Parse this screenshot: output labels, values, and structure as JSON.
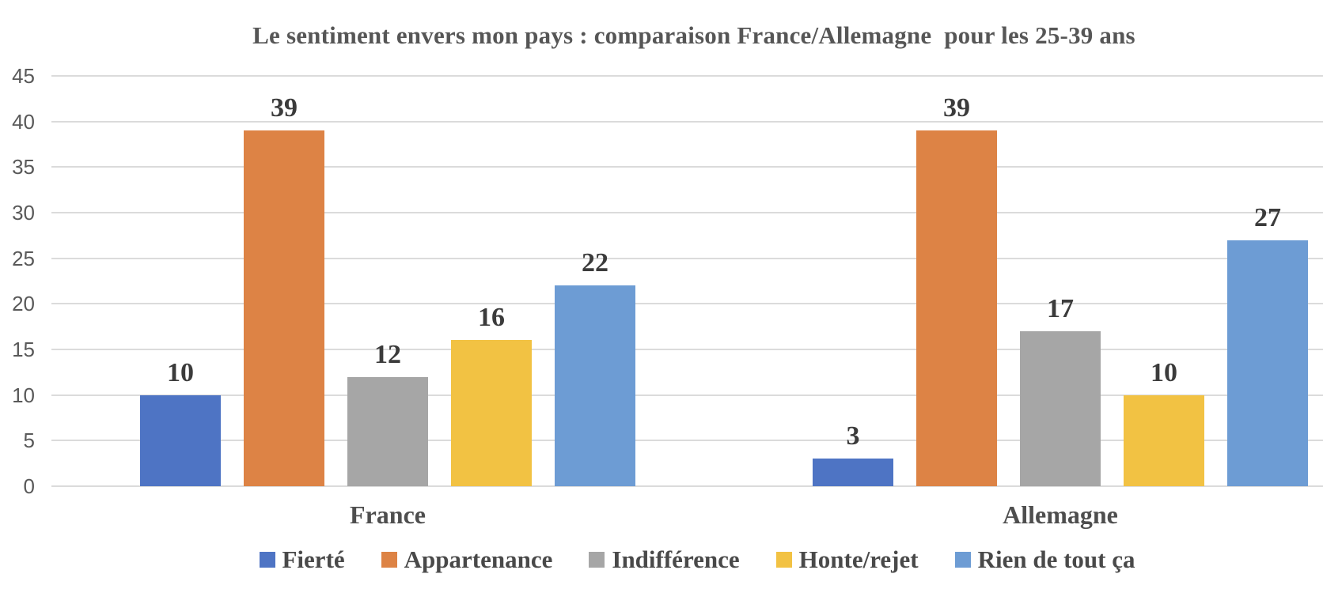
{
  "title": "Le sentiment envers mon pays : comparaison France/Allemagne  pour les 25-39 ans",
  "colors": {
    "background": "#ffffff",
    "gridline": "#dbdbdb",
    "title_text": "#565656",
    "tick_text": "#595959",
    "value_label_text": "#3b3b3b",
    "category_label_text": "#4e4e4e",
    "legend_text": "#494949"
  },
  "chart_data": {
    "type": "bar",
    "title": "Le sentiment envers mon pays : comparaison France/Allemagne  pour les 25-39 ans",
    "xlabel": "",
    "ylabel": "",
    "categories": [
      "France",
      "Allemagne"
    ],
    "series": [
      {
        "name": "Fierté",
        "color": "#4E74C4",
        "values": [
          10,
          3
        ]
      },
      {
        "name": "Appartenance",
        "color": "#DD8345",
        "values": [
          39,
          39
        ]
      },
      {
        "name": "Indifférence",
        "color": "#A6A6A6",
        "values": [
          12,
          17
        ]
      },
      {
        "name": "Honte/rejet",
        "color": "#F2C243",
        "values": [
          16,
          10
        ]
      },
      {
        "name": "Rien de tout ça",
        "color": "#6D9CD4",
        "values": [
          22,
          27
        ]
      }
    ],
    "ylim": [
      0,
      45
    ],
    "yticks": [
      0,
      5,
      10,
      15,
      20,
      25,
      30,
      35,
      40,
      45
    ],
    "grid": "horizontal",
    "legend_position": "bottom",
    "bar_value_labels": true
  }
}
